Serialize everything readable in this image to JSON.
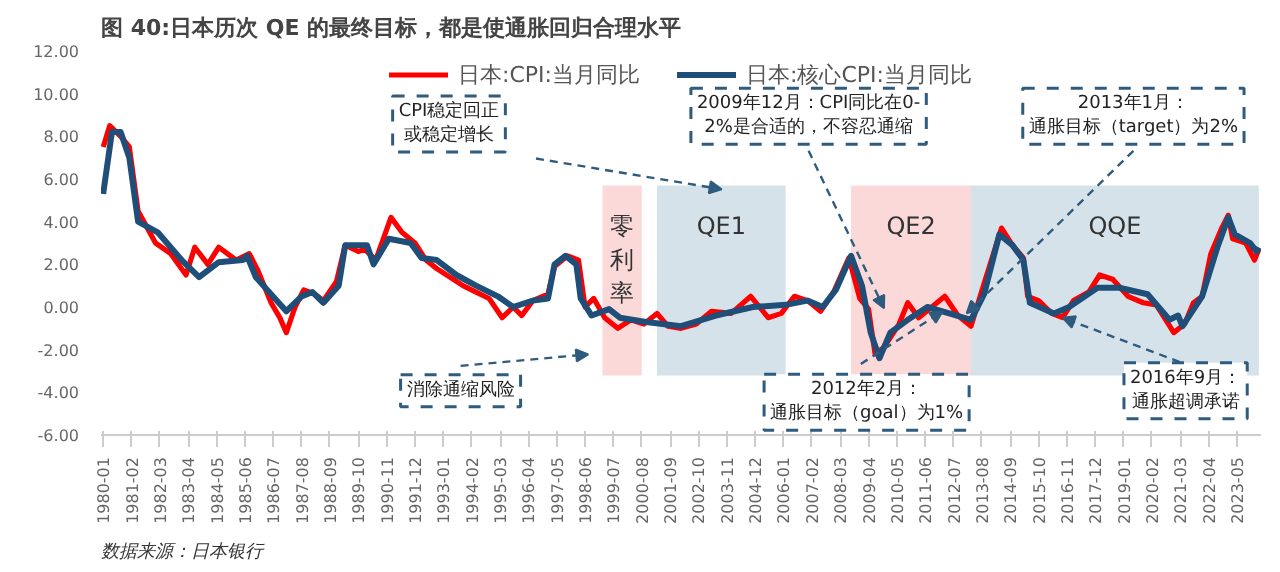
{
  "chart_data": {
    "type": "line",
    "title": "图 40:日本历次 QE 的最终目标，都是使通胀回归合理水平",
    "xlim": [
      "1979-12",
      "2024-04"
    ],
    "xticks": [
      "1980-01",
      "1981-02",
      "1982-03",
      "1983-04",
      "1984-05",
      "1985-06",
      "1986-07",
      "1987-08",
      "1988-09",
      "1989-10",
      "1990-11",
      "1991-12",
      "1993-01",
      "1994-02",
      "1995-03",
      "1996-04",
      "1997-05",
      "1998-06",
      "1999-07",
      "2000-08",
      "2001-09",
      "2002-10",
      "2003-11",
      "2004-12",
      "2006-01",
      "2007-02",
      "2008-03",
      "2009-04",
      "2010-05",
      "2011-06",
      "2012-07",
      "2013-08",
      "2014-09",
      "2015-10",
      "2016-11",
      "2017-12",
      "2019-01",
      "2020-02",
      "2021-03",
      "2022-04",
      "2023-05"
    ],
    "ylim": [
      -6,
      12
    ],
    "yticks": [
      {
        "value": -6,
        "label": "-6.00"
      },
      {
        "value": -4,
        "label": "-4.00"
      },
      {
        "value": -2,
        "label": "-2.00"
      },
      {
        "value": 0,
        "label": "0.00"
      },
      {
        "value": 2,
        "label": "2.00"
      },
      {
        "value": 4,
        "label": "4.00"
      },
      {
        "value": 6,
        "label": "6.00"
      },
      {
        "value": 8,
        "label": "8.00"
      },
      {
        "value": 10,
        "label": "10.00"
      },
      {
        "value": 12,
        "label": "12.00"
      }
    ],
    "grid": false,
    "legend": "top",
    "line_style": "solid",
    "marker": "none",
    "series": [
      {
        "name": "日本:CPI:当月同比",
        "color": "#ff0000",
        "x": [
          "1980-01",
          "1980-04",
          "1980-09",
          "1981-01",
          "1981-05",
          "1982-01",
          "1982-08",
          "1983-03",
          "1983-07",
          "1984-01",
          "1984-06",
          "1985-02",
          "1985-08",
          "1985-12",
          "1986-06",
          "1986-10",
          "1987-01",
          "1987-05",
          "1987-09",
          "1988-02",
          "1988-06",
          "1988-12",
          "1989-04",
          "1989-10",
          "1990-01",
          "1990-06",
          "1991-01",
          "1991-06",
          "1991-12",
          "1992-05",
          "1992-10",
          "1993-04",
          "1993-10",
          "1994-04",
          "1994-10",
          "1995-04",
          "1995-09",
          "1996-01",
          "1996-06",
          "1997-01",
          "1997-04",
          "1997-10",
          "1998-03",
          "1998-06",
          "1998-10",
          "1999-03",
          "1999-09",
          "2000-03",
          "2000-09",
          "2001-03",
          "2001-08",
          "2002-02",
          "2002-09",
          "2003-04",
          "2004-01",
          "2004-10",
          "2005-06",
          "2005-12",
          "2006-06",
          "2006-12",
          "2007-06",
          "2007-12",
          "2008-07",
          "2008-12",
          "2009-04",
          "2009-07",
          "2009-11",
          "2010-06",
          "2010-10",
          "2011-03",
          "2011-09",
          "2012-03",
          "2012-09",
          "2013-03",
          "2013-09",
          "2014-05",
          "2014-10",
          "2015-03",
          "2015-05",
          "2015-10",
          "2016-04",
          "2016-09",
          "2017-02",
          "2017-09",
          "2018-02",
          "2018-08",
          "2019-03",
          "2019-10",
          "2020-04",
          "2020-12",
          "2021-05",
          "2021-09",
          "2022-01",
          "2022-05",
          "2022-10",
          "2023-01",
          "2023-03",
          "2023-09",
          "2024-01",
          "2024-03"
        ],
        "values": [
          7.5,
          8.5,
          8.0,
          7.5,
          4.5,
          3.0,
          2.5,
          1.5,
          2.8,
          2.0,
          2.8,
          2.2,
          2.5,
          1.7,
          0.2,
          -0.5,
          -1.2,
          0.0,
          0.8,
          0.6,
          0.3,
          1.2,
          2.9,
          2.6,
          2.7,
          2.2,
          4.2,
          3.5,
          3.0,
          2.2,
          1.8,
          1.4,
          1.0,
          0.7,
          0.4,
          -0.5,
          0.0,
          -0.4,
          0.3,
          0.6,
          1.9,
          2.4,
          2.2,
          0.0,
          0.4,
          -0.5,
          -1.0,
          -0.6,
          -0.8,
          -0.3,
          -0.9,
          -1.0,
          -0.8,
          -0.2,
          -0.3,
          0.5,
          -0.5,
          -0.3,
          0.5,
          0.3,
          -0.2,
          0.7,
          2.3,
          0.4,
          -0.1,
          -2.2,
          -1.9,
          -0.8,
          0.2,
          -0.5,
          0.0,
          0.5,
          -0.4,
          -0.9,
          1.1,
          3.7,
          2.9,
          2.3,
          0.5,
          0.3,
          -0.3,
          -0.5,
          0.3,
          0.7,
          1.5,
          1.3,
          0.5,
          0.2,
          0.1,
          -1.2,
          -0.8,
          0.2,
          0.5,
          2.5,
          3.7,
          4.3,
          3.2,
          3.0,
          2.2,
          2.7
        ]
      },
      {
        "name": "日本:核心CPI:当月同比",
        "color": "#1f4e79",
        "x": [
          "1980-01",
          "1980-05",
          "1980-09",
          "1981-01",
          "1981-05",
          "1982-02",
          "1983-01",
          "1983-09",
          "1984-06",
          "1985-05",
          "1985-07",
          "1985-11",
          "1987-01",
          "1987-08",
          "1988-01",
          "1988-06",
          "1989-01",
          "1989-04",
          "1990-02",
          "1990-05",
          "1990-12",
          "1991-10",
          "1992-03",
          "1992-10",
          "1993-07",
          "1994-04",
          "1995-02",
          "1995-09",
          "1996-06",
          "1997-01",
          "1997-04",
          "1997-09",
          "1998-02",
          "1998-04",
          "1998-09",
          "1999-05",
          "1999-10",
          "2000-10",
          "2002-02",
          "2003-06",
          "2004-11",
          "2006-02",
          "2006-12",
          "2007-07",
          "2008-01",
          "2008-08",
          "2009-01",
          "2009-05",
          "2009-09",
          "2010-02",
          "2010-10",
          "2011-07",
          "2012-05",
          "2013-03",
          "2013-09",
          "2014-04",
          "2014-10",
          "2015-03",
          "2015-06",
          "2016-05",
          "2016-12",
          "2018-01",
          "2018-11",
          "2019-12",
          "2020-10",
          "2021-02",
          "2021-04",
          "2022-01",
          "2022-08",
          "2023-01",
          "2023-04",
          "2023-11",
          "2024-02",
          "2024-03"
        ],
        "values": [
          5.3,
          8.2,
          8.2,
          7.0,
          4.0,
          3.5,
          2.2,
          1.4,
          2.1,
          2.2,
          2.4,
          1.4,
          -0.2,
          0.5,
          0.7,
          0.2,
          1.0,
          2.9,
          2.9,
          2.0,
          3.2,
          3.0,
          2.3,
          2.2,
          1.5,
          1.0,
          0.5,
          0.0,
          0.3,
          0.4,
          2.0,
          2.4,
          2.0,
          0.4,
          -0.4,
          -0.1,
          -0.5,
          -0.7,
          -0.9,
          -0.4,
          0.0,
          0.1,
          0.3,
          0.0,
          0.8,
          2.4,
          1.0,
          -1.2,
          -2.4,
          -1.2,
          -0.6,
          0.0,
          -0.3,
          -0.6,
          0.6,
          3.4,
          2.9,
          2.2,
          0.2,
          -0.3,
          0.0,
          0.9,
          0.9,
          0.6,
          -0.6,
          -0.4,
          -0.9,
          0.5,
          2.8,
          4.2,
          3.4,
          3.0,
          2.6,
          2.8
        ]
      }
    ],
    "bands": [
      {
        "axis": "x",
        "from": "1999-02",
        "to": "2000-08",
        "label": "零利率",
        "color": "#fbd9d9"
      },
      {
        "axis": "x",
        "from": "2001-03",
        "to": "2006-02",
        "label": "QE1",
        "color": "#d6e2ea"
      },
      {
        "axis": "x",
        "from": "2008-08",
        "to": "2013-03",
        "label": "QE2",
        "color": "#fbd9d9"
      },
      {
        "axis": "x",
        "from": "2013-03",
        "to": "2024-03",
        "label": "QQE",
        "color": "#d6e2ea"
      }
    ],
    "annotations": [
      "CPI稳定回正或稳定增长",
      "消除通缩风险",
      "2009年12月：CPI同比在0-2%是合适的，不容忍通缩",
      {
        "text": "2013年1月：通胀目标（target）为2%",
        "x": "2013-01",
        "y": -0.3
      },
      {
        "text": "2012年2月：通胀目标（goal）为1%",
        "x": "2012-02",
        "y": -0.2
      },
      {
        "text": "2016年9月：通胀超调承诺",
        "x": "2016-09",
        "y": -0.5
      },
      "数据来源：日本银行"
    ]
  }
}
